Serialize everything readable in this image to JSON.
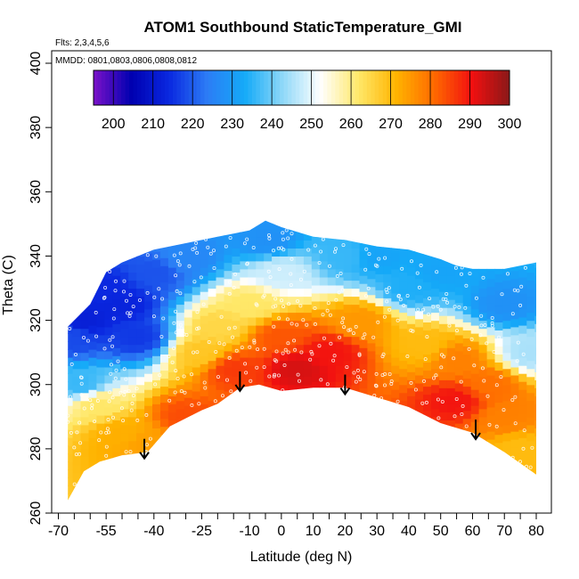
{
  "chart_data": {
    "type": "heatmap",
    "title": "ATOM1 Southbound StaticTemperature_GMI",
    "subtitle_flights": "Flts: 2,3,4,5,6",
    "subtitle_dates": "MMDD: 0801,0803,0806,0808,0812",
    "xlabel": "Latitude (deg N)",
    "ylabel": "Theta (C)",
    "xlim": [
      -70,
      85
    ],
    "ylim": [
      260,
      400
    ],
    "x_tick_labels": [
      -70,
      -55,
      -40,
      -25,
      -10,
      0,
      10,
      20,
      30,
      40,
      50,
      60,
      70,
      80
    ],
    "y_tick_labels": [
      260,
      280,
      300,
      320,
      340,
      360,
      380,
      400
    ],
    "colorbar": {
      "min": 195,
      "max": 300,
      "tick_labels": [
        200,
        210,
        220,
        230,
        240,
        250,
        260,
        270,
        280,
        290,
        300
      ],
      "palette": [
        "#7a12c8",
        "#0000b0",
        "#0a28e0",
        "#2c7cf5",
        "#14aaf8",
        "#8fd8f8",
        "#ffffff",
        "#ffe86a",
        "#ffb400",
        "#ff6a00",
        "#f21010",
        "#8a1818"
      ]
    },
    "top_boundary": [
      [
        -67,
        318
      ],
      [
        -60,
        325
      ],
      [
        -55,
        335
      ],
      [
        -50,
        338
      ],
      [
        -40,
        342
      ],
      [
        -30,
        344
      ],
      [
        -20,
        346
      ],
      [
        -10,
        348
      ],
      [
        -5,
        351
      ],
      [
        0,
        349
      ],
      [
        10,
        346
      ],
      [
        20,
        345
      ],
      [
        30,
        343
      ],
      [
        40,
        342
      ],
      [
        50,
        339
      ],
      [
        55,
        337
      ],
      [
        60,
        336
      ],
      [
        70,
        336
      ],
      [
        80,
        338
      ]
    ],
    "bottom_boundary": [
      [
        -67,
        264
      ],
      [
        -62,
        273
      ],
      [
        -57,
        276
      ],
      [
        -50,
        278
      ],
      [
        -42,
        279
      ],
      [
        -35,
        287
      ],
      [
        -25,
        292
      ],
      [
        -20,
        294
      ],
      [
        -13,
        299
      ],
      [
        -7,
        300
      ],
      [
        0,
        298
      ],
      [
        10,
        299
      ],
      [
        20,
        299
      ],
      [
        30,
        296
      ],
      [
        40,
        293
      ],
      [
        50,
        288
      ],
      [
        60,
        285
      ],
      [
        70,
        279
      ],
      [
        80,
        272
      ]
    ],
    "arrows": [
      {
        "latitude": -43,
        "theta": 277
      },
      {
        "latitude": -13,
        "theta": 298
      },
      {
        "latitude": 20,
        "theta": 297
      },
      {
        "latitude": 61,
        "theta": 283
      }
    ],
    "samples": [
      {
        "latitude": -66,
        "theta": 315,
        "value": 218
      },
      {
        "latitude": -62,
        "theta": 320,
        "value": 212
      },
      {
        "latitude": -55,
        "theta": 330,
        "value": 214
      },
      {
        "latitude": -50,
        "theta": 325,
        "value": 213
      },
      {
        "latitude": -45,
        "theta": 315,
        "value": 216
      },
      {
        "latitude": -40,
        "theta": 335,
        "value": 219
      },
      {
        "latitude": -63,
        "theta": 300,
        "value": 236
      },
      {
        "latitude": -58,
        "theta": 294,
        "value": 262
      },
      {
        "latitude": -50,
        "theta": 285,
        "value": 272
      },
      {
        "latitude": -42,
        "theta": 282,
        "value": 274
      },
      {
        "latitude": -30,
        "theta": 290,
        "value": 284
      },
      {
        "latitude": -25,
        "theta": 310,
        "value": 268
      },
      {
        "latitude": -20,
        "theta": 318,
        "value": 265
      },
      {
        "latitude": -15,
        "theta": 305,
        "value": 286
      },
      {
        "latitude": -10,
        "theta": 325,
        "value": 262
      },
      {
        "latitude": 0,
        "theta": 335,
        "value": 248
      },
      {
        "latitude": 0,
        "theta": 315,
        "value": 283
      },
      {
        "latitude": 5,
        "theta": 305,
        "value": 293
      },
      {
        "latitude": 15,
        "theta": 310,
        "value": 290
      },
      {
        "latitude": 25,
        "theta": 320,
        "value": 275
      },
      {
        "latitude": 30,
        "theta": 340,
        "value": 232
      },
      {
        "latitude": 40,
        "theta": 330,
        "value": 234
      },
      {
        "latitude": 45,
        "theta": 312,
        "value": 270
      },
      {
        "latitude": 55,
        "theta": 308,
        "value": 278
      },
      {
        "latitude": 55,
        "theta": 295,
        "value": 290
      },
      {
        "latitude": 65,
        "theta": 300,
        "value": 280
      },
      {
        "latitude": 70,
        "theta": 290,
        "value": 278
      },
      {
        "latitude": 75,
        "theta": 280,
        "value": 270
      },
      {
        "latitude": 78,
        "theta": 310,
        "value": 245
      },
      {
        "latitude": 70,
        "theta": 325,
        "value": 228
      },
      {
        "latitude": 50,
        "theta": 335,
        "value": 232
      },
      {
        "latitude": -5,
        "theta": 345,
        "value": 228
      },
      {
        "latitude": 20,
        "theta": 340,
        "value": 236
      },
      {
        "latitude": -30,
        "theta": 340,
        "value": 226
      }
    ]
  }
}
